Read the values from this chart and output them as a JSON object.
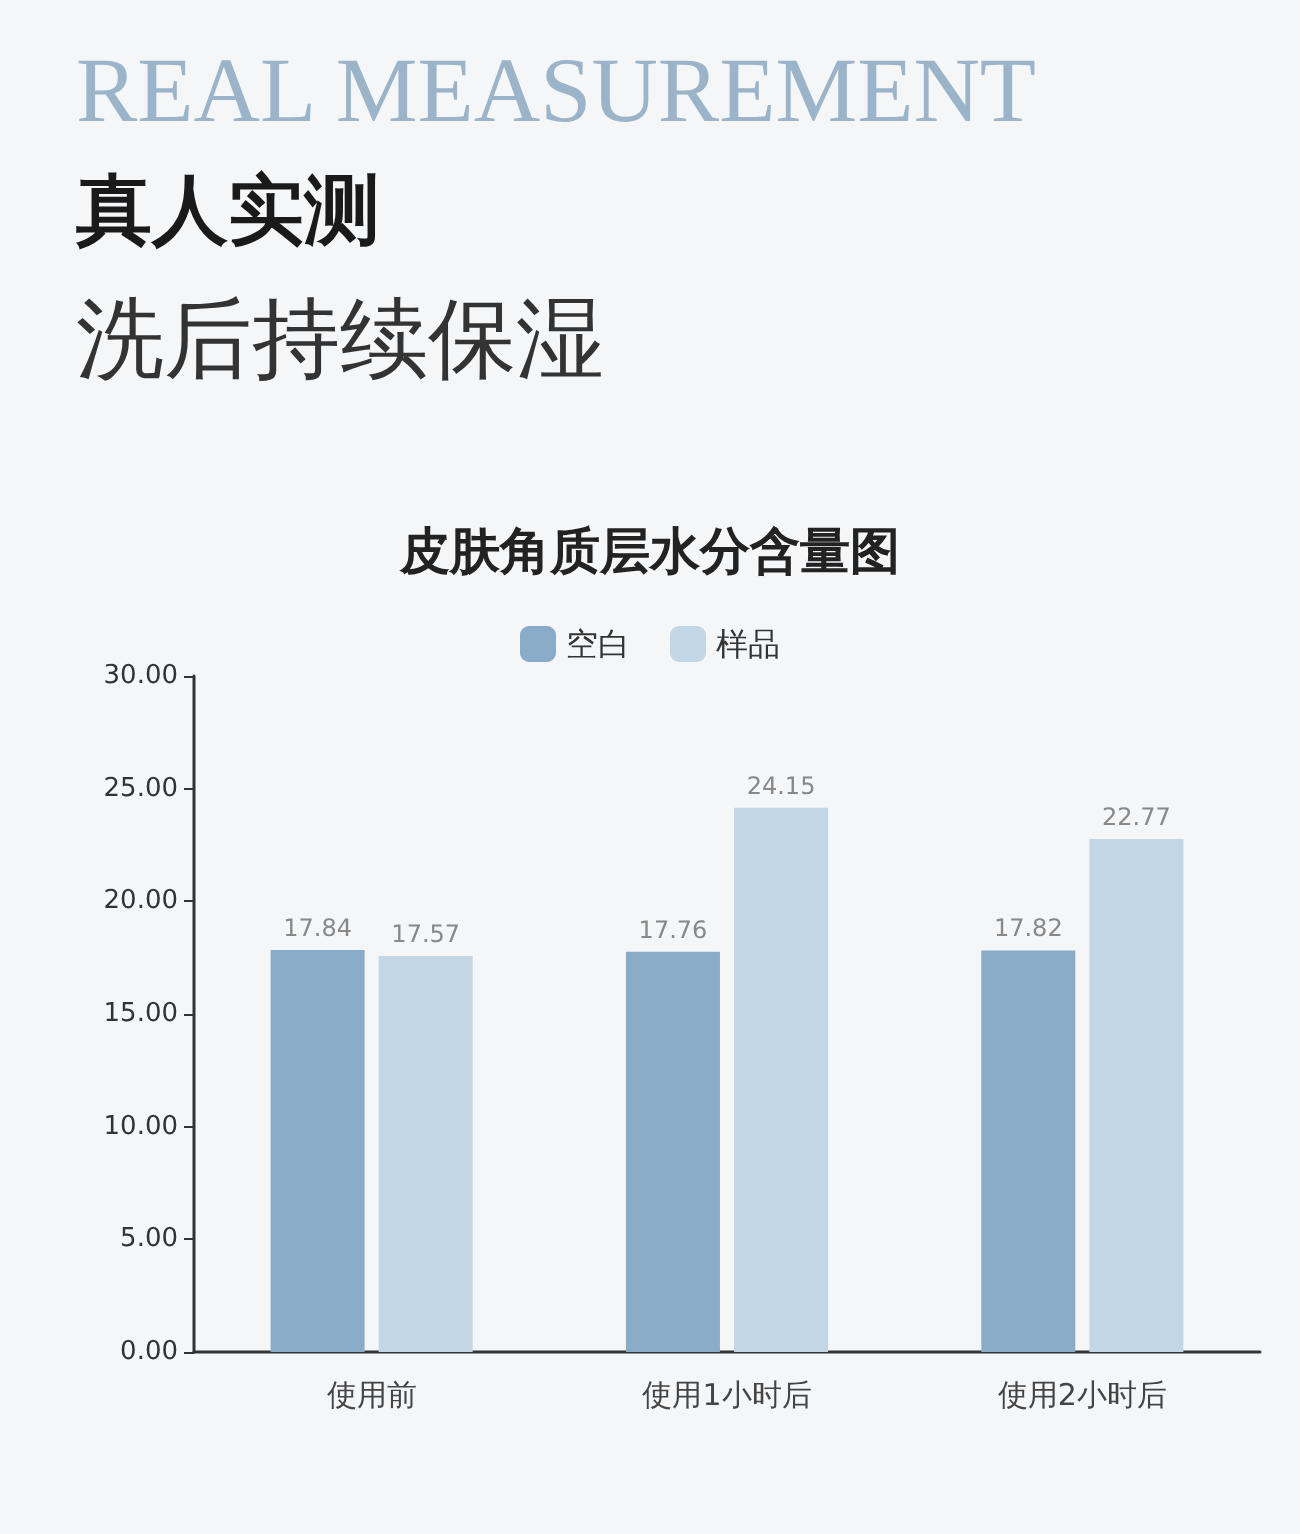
{
  "chart_data": {
    "type": "bar",
    "title": "皮肤角质层水分含量图",
    "annotations": [
      "REAL MEASUREMENT",
      "真人实测",
      "洗后持续保湿"
    ],
    "categories": [
      "使用前",
      "使用1小时后",
      "使用2小时后"
    ],
    "series": [
      {
        "name": "空白",
        "color": "#8aacc8",
        "values": [
          17.84,
          17.76,
          17.82
        ]
      },
      {
        "name": "样品",
        "color": "#c3d6e5",
        "values": [
          17.57,
          24.15,
          22.77
        ]
      }
    ],
    "ylim": [
      0,
      30
    ],
    "yticks": [
      {
        "value": 0,
        "label": "0.00"
      },
      {
        "value": 5,
        "label": "5.00"
      },
      {
        "value": 10,
        "label": "10.00"
      },
      {
        "value": 15,
        "label": "15.00"
      },
      {
        "value": 20,
        "label": "20.00"
      },
      {
        "value": 25,
        "label": "25.00"
      },
      {
        "value": 30,
        "label": "30.00"
      }
    ],
    "grid": false,
    "legend": "top",
    "data_labels": true
  }
}
